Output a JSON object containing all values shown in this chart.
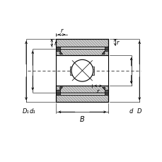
{
  "bg_color": "#ffffff",
  "line_color": "#000000",
  "labels": {
    "B": "B",
    "r1": "r",
    "r2": "r",
    "r3": "r",
    "r4": "r",
    "D1": "D₁",
    "d1": "d₁",
    "d": "d",
    "D": "D"
  },
  "figsize": [
    2.3,
    2.3
  ],
  "dpi": 100
}
